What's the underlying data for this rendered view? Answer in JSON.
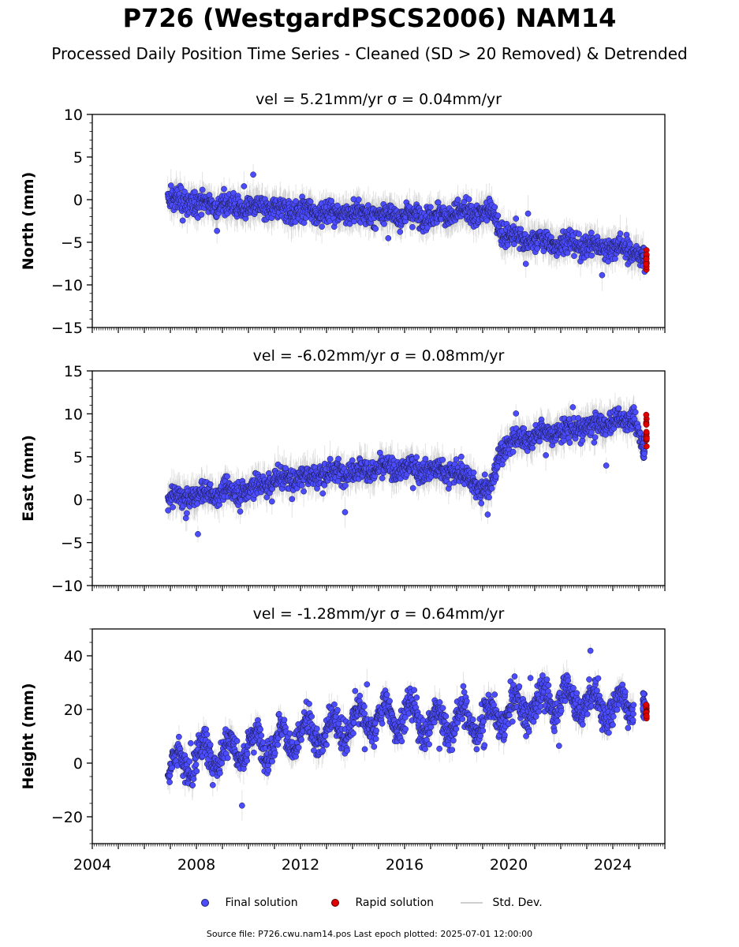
{
  "title": "P726 (WestgardPSCS2006) NAM14",
  "subtitle": "Processed Daily Position Time Series - Cleaned (SD > 20 Removed) & Detrended",
  "legend": {
    "final": "Final solution",
    "rapid": "Rapid solution",
    "std": "Std. Dev."
  },
  "source": "Source file: P726.cwu.nam14.pos  Last epoch plotted: 2025-07-01 12:00:00",
  "colors": {
    "final": "#4b4bff",
    "rapid": "#e00000",
    "std": "#b0b0b0",
    "axis": "#000000"
  },
  "chart_data": [
    {
      "type": "scatter",
      "title": "vel = 5.21mm/yr   σ = 0.04mm/yr",
      "ylabel": "North (mm)",
      "xlim": [
        2004,
        2026
      ],
      "ylim": [
        -15,
        10
      ],
      "yticks": [
        -15,
        -10,
        -5,
        0,
        5,
        10
      ],
      "xticks": [
        2004,
        2008,
        2012,
        2016,
        2020,
        2024
      ],
      "series": [
        {
          "name": "Final solution",
          "trend": [
            [
              2006.9,
              0.0
            ],
            [
              2009.0,
              -0.6
            ],
            [
              2011.0,
              -1.1
            ],
            [
              2013.0,
              -1.5
            ],
            [
              2015.0,
              -1.8
            ],
            [
              2017.0,
              -1.9
            ],
            [
              2018.5,
              -1.6
            ],
            [
              2019.4,
              -1.5
            ],
            [
              2019.8,
              -4.0
            ],
            [
              2020.3,
              -4.5
            ],
            [
              2021.0,
              -4.8
            ],
            [
              2022.5,
              -5.2
            ],
            [
              2024.0,
              -5.6
            ],
            [
              2024.8,
              -5.9
            ],
            [
              2025.2,
              -6.8
            ]
          ]
        },
        {
          "name": "Rapid solution",
          "trend": [
            [
              2025.2,
              -6.8
            ],
            [
              2025.3,
              -7.0
            ]
          ]
        }
      ]
    },
    {
      "type": "scatter",
      "title": "vel = -6.02mm/yr   σ = 0.08mm/yr",
      "ylabel": "East (mm)",
      "xlim": [
        2004,
        2026
      ],
      "ylim": [
        -10,
        15
      ],
      "yticks": [
        -10,
        -5,
        0,
        5,
        10,
        15
      ],
      "xticks": [
        2004,
        2008,
        2012,
        2016,
        2020,
        2024
      ],
      "series": [
        {
          "name": "Final solution",
          "trend": [
            [
              2006.9,
              0.0
            ],
            [
              2008.0,
              0.5
            ],
            [
              2010.0,
              1.2
            ],
            [
              2011.0,
              2.3
            ],
            [
              2013.0,
              3.0
            ],
            [
              2015.0,
              3.6
            ],
            [
              2016.5,
              3.6
            ],
            [
              2018.0,
              3.2
            ],
            [
              2019.3,
              1.0
            ],
            [
              2019.7,
              6.0
            ],
            [
              2020.5,
              7.2
            ],
            [
              2022.0,
              8.0
            ],
            [
              2023.0,
              8.5
            ],
            [
              2024.8,
              9.5
            ],
            [
              2025.2,
              6.0
            ]
          ]
        },
        {
          "name": "Rapid solution",
          "trend": [
            [
              2025.2,
              6.0
            ],
            [
              2025.3,
              8.0
            ]
          ]
        }
      ]
    },
    {
      "type": "scatter",
      "title": "vel = -1.28mm/yr   σ = 0.64mm/yr",
      "ylabel": "Height (mm)",
      "xlim": [
        2004,
        2026
      ],
      "ylim": [
        -30,
        50
      ],
      "yticks": [
        -20,
        0,
        20,
        40
      ],
      "xticks": [
        2004,
        2008,
        2012,
        2016,
        2020,
        2024
      ],
      "series": [
        {
          "name": "Final solution",
          "trend": [
            [
              2006.9,
              -2.0
            ],
            [
              2008.0,
              2.0
            ],
            [
              2009.0,
              4.0
            ],
            [
              2010.0,
              6.0
            ],
            [
              2011.0,
              8.0
            ],
            [
              2012.0,
              10.0
            ],
            [
              2013.0,
              12.0
            ],
            [
              2014.0,
              15.0
            ],
            [
              2015.0,
              17.0
            ],
            [
              2016.0,
              18.0
            ],
            [
              2017.0,
              15.0
            ],
            [
              2018.0,
              16.0
            ],
            [
              2019.0,
              16.0
            ],
            [
              2020.0,
              19.0
            ],
            [
              2021.0,
              22.0
            ],
            [
              2022.0,
              24.0
            ],
            [
              2023.0,
              23.0
            ],
            [
              2024.0,
              20.0
            ],
            [
              2024.8,
              24.0
            ]
          ]
        },
        {
          "name": "Rapid solution",
          "trend": [
            [
              2025.2,
              22.0
            ],
            [
              2025.3,
              20.0
            ]
          ]
        }
      ]
    }
  ]
}
